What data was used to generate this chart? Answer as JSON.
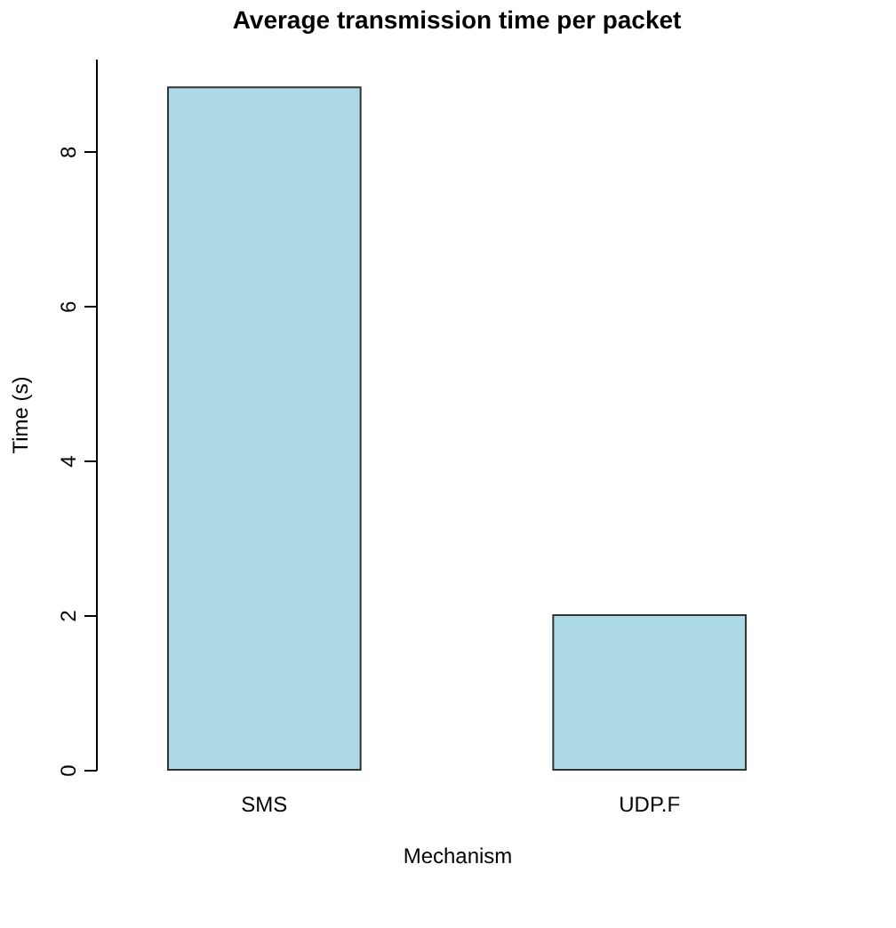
{
  "chart_data": {
    "type": "bar",
    "title": "Average transmission time per packet",
    "xlabel": "Mechanism",
    "ylabel": "Time (s)",
    "categories": [
      "SMS",
      "UDP.F"
    ],
    "values": [
      8.83,
      2.0
    ],
    "color": "#add8e6",
    "ylim": [
      0,
      9.2
    ],
    "yticks": [
      0,
      2,
      4,
      6,
      8
    ],
    "grid": false
  }
}
